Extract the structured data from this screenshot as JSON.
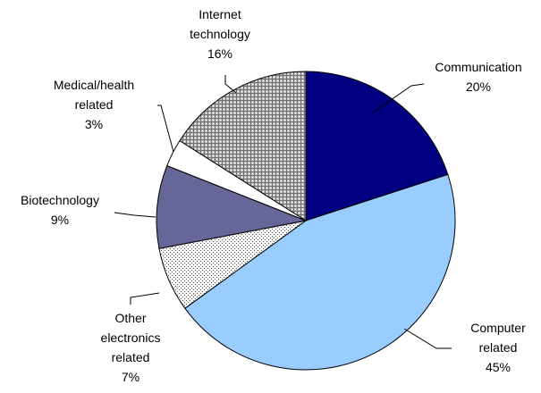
{
  "chart_data": {
    "type": "pie",
    "start_angle_deg": 0,
    "direction": "clockwise",
    "slices": [
      {
        "name": "Communication",
        "label_lines": [
          "Communication"
        ],
        "value": 20,
        "pct_label": "20%",
        "color": "#000080",
        "fill": "solid"
      },
      {
        "name": "Computer related",
        "label_lines": [
          "Computer",
          "related"
        ],
        "value": 45,
        "pct_label": "45%",
        "color": "#99ccff",
        "fill": "solid"
      },
      {
        "name": "Other electronics related",
        "label_lines": [
          "Other",
          "electronics",
          "related"
        ],
        "value": 7,
        "pct_label": "7%",
        "color": "#f2f2f2",
        "fill": "dots"
      },
      {
        "name": "Biotechnology",
        "label_lines": [
          "Biotechnology"
        ],
        "value": 9,
        "pct_label": "9%",
        "color": "#666699",
        "fill": "solid"
      },
      {
        "name": "Medical/health related",
        "label_lines": [
          "Medical/health",
          "related"
        ],
        "value": 3,
        "pct_label": "3%",
        "color": "#ffffff",
        "fill": "solid"
      },
      {
        "name": "Internet technology",
        "label_lines": [
          "Internet",
          "technology"
        ],
        "value": 16,
        "pct_label": "16%",
        "color": "#c0c0c0",
        "fill": "grid"
      }
    ]
  }
}
